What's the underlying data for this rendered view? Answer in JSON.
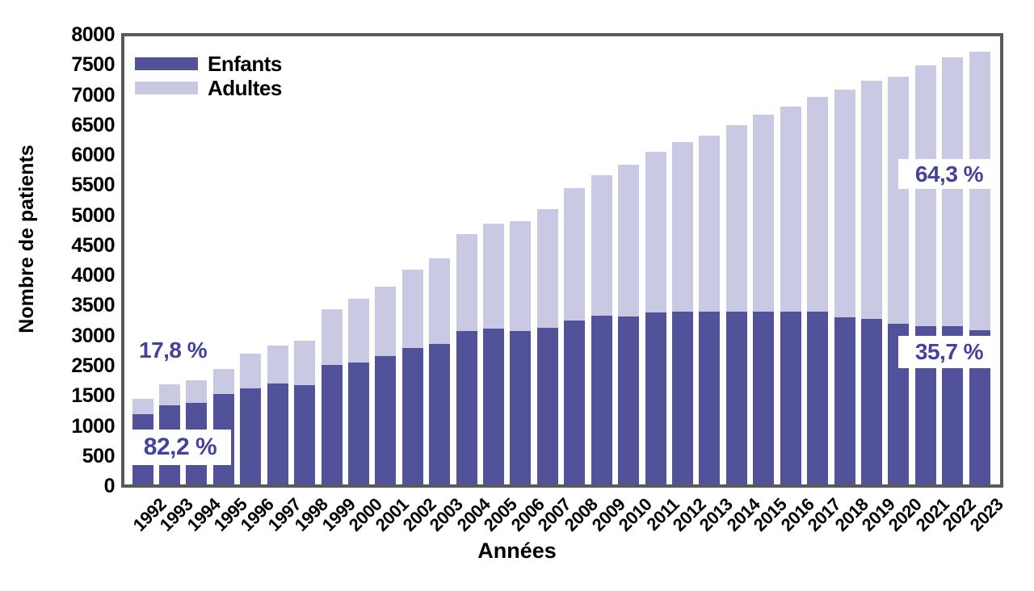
{
  "colors": {
    "enfants": "#52529a",
    "adultes": "#cac9e4",
    "axis": "#59595b",
    "annotation_text": "#43439c",
    "background": "#ffffff",
    "tick_text": "#000000"
  },
  "chart_data": {
    "type": "bar",
    "stacked": true,
    "title": "",
    "xlabel": "Années",
    "ylabel": "Nombre de patients",
    "legend_position": "top-left inside",
    "grid": false,
    "ylim": [
      0,
      8000
    ],
    "y_tick_labels_top_to_bottom": [
      "8000",
      "7500",
      "7000",
      "6500",
      "6000",
      "5500",
      "5000",
      "4500",
      "4000",
      "3500",
      "3000",
      "2500",
      "1500",
      "1000",
      "500",
      "0"
    ],
    "categories": [
      "1992",
      "1993",
      "1994",
      "1995",
      "1996",
      "1997",
      "1998",
      "1999",
      "2000",
      "2001",
      "2002",
      "2003",
      "2004",
      "2005",
      "2006",
      "2007",
      "2008",
      "2009",
      "2010",
      "2011",
      "2012",
      "2013",
      "2014",
      "2015",
      "2016",
      "2017",
      "2018",
      "2019",
      "2020",
      "2021",
      "2022",
      "2023"
    ],
    "series": [
      {
        "name": "Enfants",
        "color": "#52529a",
        "values": [
          1250,
          1410,
          1460,
          1610,
          1710,
          1800,
          1775,
          2130,
          2175,
          2295,
          2435,
          2510,
          2740,
          2775,
          2735,
          2795,
          2920,
          3010,
          2995,
          3070,
          3090,
          3090,
          3090,
          3090,
          3080,
          3090,
          2985,
          2950,
          2875,
          2820,
          2820,
          2760
        ]
      },
      {
        "name": "Adultes",
        "color": "#cac9e4",
        "values": [
          270,
          375,
          410,
          450,
          620,
          680,
          790,
          1000,
          1145,
          1240,
          1400,
          1525,
          1735,
          1880,
          1955,
          2125,
          2370,
          2505,
          2715,
          2875,
          3020,
          3140,
          3330,
          3510,
          3665,
          3830,
          4065,
          4250,
          4415,
          4650,
          4805,
          4970
        ]
      }
    ],
    "annotations": [
      {
        "text": "17,8 %",
        "refers_to": "Adultes share 1992",
        "boxed": false
      },
      {
        "text": "82,2 %",
        "refers_to": "Enfants share 1992",
        "boxed": true
      },
      {
        "text": "64,3 %",
        "refers_to": "Adultes share 2023",
        "boxed": true
      },
      {
        "text": "35,7 %",
        "refers_to": "Enfants share 2023",
        "boxed": true
      }
    ]
  }
}
